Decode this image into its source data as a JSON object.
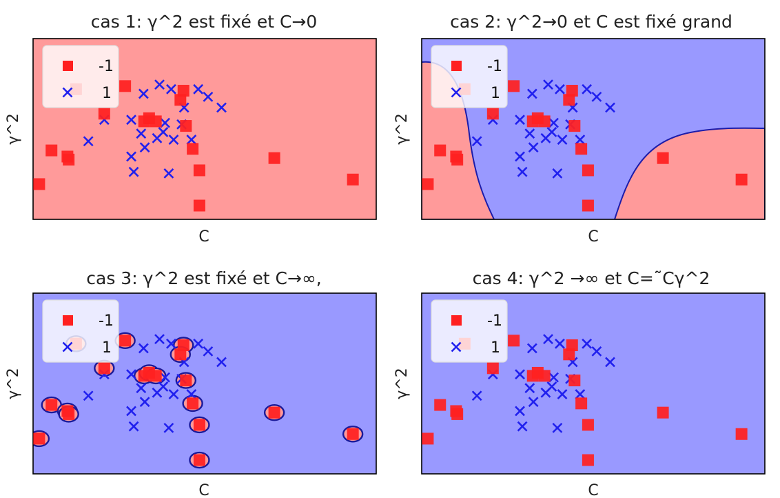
{
  "chart_data": [
    {
      "type": "scatter",
      "title": "cas 1: γ^2 est fixé et C→0",
      "xlabel": "C",
      "ylabel": "γ^2",
      "background_color": "#ff9a9a",
      "region": "all-negative",
      "legend_location": "upper-left",
      "series": [
        {
          "name": "-1",
          "marker": "square",
          "color": "#ff2020",
          "points": [
            [
              3.0,
              3.2
            ],
            [
              5.6,
              2.8
            ],
            [
              5.8,
              2.6
            ],
            [
              11.6,
              5.6
            ],
            [
              15.0,
              7.4
            ],
            [
              18.1,
              5.1
            ],
            [
              18.9,
              5.3
            ],
            [
              20.0,
              5.1
            ],
            [
              24.5,
              7.1
            ],
            [
              24.0,
              6.5
            ],
            [
              24.9,
              4.8
            ],
            [
              26.0,
              3.3
            ],
            [
              27.1,
              1.9
            ],
            [
              39.3,
              2.7
            ],
            [
              52.1,
              1.3
            ],
            [
              1.0,
              1.0
            ],
            [
              7.0,
              7.2
            ],
            [
              27.1,
              -0.4
            ]
          ]
        },
        {
          "name": "1",
          "marker": "x",
          "color": "#2020ee",
          "points": [
            [
              9.0,
              3.8
            ],
            [
              16.0,
              5.2
            ],
            [
              18.0,
              6.9
            ],
            [
              20.6,
              7.5
            ],
            [
              22.5,
              7.2
            ],
            [
              24.6,
              6.0
            ],
            [
              26.9,
              7.2
            ],
            [
              28.5,
              6.7
            ],
            [
              30.7,
              6.0
            ],
            [
              11.6,
              5.2
            ],
            [
              16.0,
              2.8
            ],
            [
              17.6,
              4.3
            ],
            [
              18.2,
              3.4
            ],
            [
              20.2,
              4.0
            ],
            [
              21.5,
              5.0
            ],
            [
              22.9,
              3.9
            ],
            [
              24.2,
              4.9
            ],
            [
              25.8,
              3.9
            ],
            [
              16.4,
              1.8
            ],
            [
              22.1,
              1.7
            ],
            [
              21.2,
              4.4
            ]
          ]
        }
      ]
    },
    {
      "type": "scatter",
      "title": "cas 2: γ^2→0 et  C est fixé grand",
      "xlabel": "C",
      "ylabel": "γ^2",
      "background_color": "#9999ff",
      "negative_region_color": "#ff9a9a",
      "region": "mixed",
      "legend_location": "upper-left",
      "series": [
        {
          "name": "-1",
          "marker": "square",
          "color": "#ff2020",
          "points": [
            [
              3.0,
              3.2
            ],
            [
              5.6,
              2.8
            ],
            [
              5.8,
              2.6
            ],
            [
              11.6,
              5.6
            ],
            [
              15.0,
              7.4
            ],
            [
              18.1,
              5.1
            ],
            [
              18.9,
              5.3
            ],
            [
              20.0,
              5.1
            ],
            [
              24.5,
              7.1
            ],
            [
              24.0,
              6.5
            ],
            [
              24.9,
              4.8
            ],
            [
              26.0,
              3.3
            ],
            [
              27.1,
              1.9
            ],
            [
              39.3,
              2.7
            ],
            [
              52.1,
              1.3
            ],
            [
              1.0,
              1.0
            ],
            [
              7.0,
              7.2
            ],
            [
              27.1,
              -0.4
            ]
          ]
        },
        {
          "name": "1",
          "marker": "x",
          "color": "#2020ee",
          "points": [
            [
              9.0,
              3.8
            ],
            [
              16.0,
              5.2
            ],
            [
              18.0,
              6.9
            ],
            [
              20.6,
              7.5
            ],
            [
              22.5,
              7.2
            ],
            [
              24.6,
              6.0
            ],
            [
              26.9,
              7.2
            ],
            [
              28.5,
              6.7
            ],
            [
              30.7,
              6.0
            ],
            [
              11.6,
              5.2
            ],
            [
              16.0,
              2.8
            ],
            [
              17.6,
              4.3
            ],
            [
              18.2,
              3.4
            ],
            [
              20.2,
              4.0
            ],
            [
              21.5,
              5.0
            ],
            [
              22.9,
              3.9
            ],
            [
              24.2,
              4.9
            ],
            [
              25.8,
              3.9
            ],
            [
              16.4,
              1.8
            ],
            [
              22.1,
              1.7
            ],
            [
              21.2,
              4.4
            ]
          ]
        }
      ]
    },
    {
      "type": "scatter",
      "title": "cas 3: γ^2 est fixé et C→∞,",
      "xlabel": "C",
      "ylabel": "γ^2",
      "background_color": "#9999ff",
      "region": "islands",
      "legend_location": "upper-left",
      "series": [
        {
          "name": "-1",
          "marker": "square",
          "color": "#ff2020",
          "points": [
            [
              3.0,
              3.2
            ],
            [
              5.6,
              2.8
            ],
            [
              5.8,
              2.6
            ],
            [
              11.6,
              5.6
            ],
            [
              15.0,
              7.4
            ],
            [
              18.1,
              5.1
            ],
            [
              18.9,
              5.3
            ],
            [
              20.0,
              5.1
            ],
            [
              24.5,
              7.1
            ],
            [
              24.0,
              6.5
            ],
            [
              24.9,
              4.8
            ],
            [
              26.0,
              3.3
            ],
            [
              27.1,
              1.9
            ],
            [
              39.3,
              2.7
            ],
            [
              52.1,
              1.3
            ],
            [
              1.0,
              1.0
            ],
            [
              7.0,
              7.2
            ],
            [
              27.1,
              -0.4
            ]
          ]
        },
        {
          "name": "1",
          "marker": "x",
          "color": "#2020ee",
          "points": [
            [
              9.0,
              3.8
            ],
            [
              16.0,
              5.2
            ],
            [
              18.0,
              6.9
            ],
            [
              20.6,
              7.5
            ],
            [
              22.5,
              7.2
            ],
            [
              24.6,
              6.0
            ],
            [
              26.9,
              7.2
            ],
            [
              28.5,
              6.7
            ],
            [
              30.7,
              6.0
            ],
            [
              11.6,
              5.2
            ],
            [
              16.0,
              2.8
            ],
            [
              17.6,
              4.3
            ],
            [
              18.2,
              3.4
            ],
            [
              20.2,
              4.0
            ],
            [
              21.5,
              5.0
            ],
            [
              22.9,
              3.9
            ],
            [
              24.2,
              4.9
            ],
            [
              25.8,
              3.9
            ],
            [
              16.4,
              1.8
            ],
            [
              22.1,
              1.7
            ],
            [
              21.2,
              4.4
            ]
          ]
        }
      ]
    },
    {
      "type": "scatter",
      "title": "cas 4: γ^2 →∞ et C=˜Cγ^2",
      "xlabel": "C",
      "ylabel": "γ^2",
      "background_color": "#9999ff",
      "region": "all-positive",
      "legend_location": "upper-left",
      "series": [
        {
          "name": "-1",
          "marker": "square",
          "color": "#ff2020",
          "points": [
            [
              3.0,
              3.2
            ],
            [
              5.6,
              2.8
            ],
            [
              5.8,
              2.6
            ],
            [
              11.6,
              5.6
            ],
            [
              15.0,
              7.4
            ],
            [
              18.1,
              5.1
            ],
            [
              18.9,
              5.3
            ],
            [
              20.0,
              5.1
            ],
            [
              24.5,
              7.1
            ],
            [
              24.0,
              6.5
            ],
            [
              24.9,
              4.8
            ],
            [
              26.0,
              3.3
            ],
            [
              27.1,
              1.9
            ],
            [
              39.3,
              2.7
            ],
            [
              52.1,
              1.3
            ],
            [
              1.0,
              1.0
            ],
            [
              7.0,
              7.2
            ],
            [
              27.1,
              -0.4
            ]
          ]
        },
        {
          "name": "1",
          "marker": "x",
          "color": "#2020ee",
          "points": [
            [
              9.0,
              3.8
            ],
            [
              16.0,
              5.2
            ],
            [
              18.0,
              6.9
            ],
            [
              20.6,
              7.5
            ],
            [
              22.5,
              7.2
            ],
            [
              24.6,
              6.0
            ],
            [
              26.9,
              7.2
            ],
            [
              28.5,
              6.7
            ],
            [
              30.7,
              6.0
            ],
            [
              11.6,
              5.2
            ],
            [
              16.0,
              2.8
            ],
            [
              17.6,
              4.3
            ],
            [
              18.2,
              3.4
            ],
            [
              20.2,
              4.0
            ],
            [
              21.5,
              5.0
            ],
            [
              22.9,
              3.9
            ],
            [
              24.2,
              4.9
            ],
            [
              25.8,
              3.9
            ],
            [
              16.4,
              1.8
            ],
            [
              22.1,
              1.7
            ],
            [
              21.2,
              4.4
            ]
          ]
        }
      ]
    }
  ]
}
